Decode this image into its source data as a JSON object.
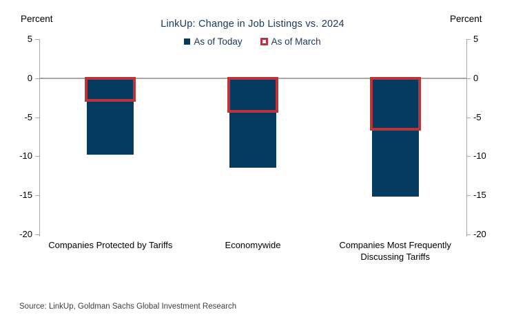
{
  "header": {
    "left_axis_label": "Percent",
    "right_axis_label": "Percent"
  },
  "source": "Source: LinkUp, Goldman Sachs Global Investment Research",
  "colors": {
    "bar_fill": "#053A61",
    "bar_outline": "#BE3338",
    "axis": "#A6A6A6",
    "title_text": "#17375D"
  },
  "chart_data": {
    "type": "bar",
    "title": "LinkUp: Change in Job Listings vs. 2024",
    "categories": [
      "Companies Protected by Tariffs",
      "Economywide",
      "Companies Most Frequently Discussing Tariffs"
    ],
    "series": [
      {
        "name": "As of Today",
        "style": "filled",
        "color": "#053A61",
        "values": [
          -9.8,
          -11.5,
          -15.2
        ]
      },
      {
        "name": "As of March",
        "style": "outline",
        "color": "#BE3338",
        "values": [
          -2.8,
          -4.2,
          -6.5
        ]
      }
    ],
    "xlabel": "",
    "ylabel": "Percent",
    "ylim": [
      -20,
      5
    ],
    "yticks": [
      5,
      0,
      -5,
      -10,
      -15,
      -20
    ],
    "grid": false,
    "zero_line": true,
    "legend_position": "top-center",
    "legend": [
      {
        "label": "As of Today",
        "marker": "filled-square"
      },
      {
        "label": "As of March",
        "marker": "open-square"
      }
    ]
  }
}
